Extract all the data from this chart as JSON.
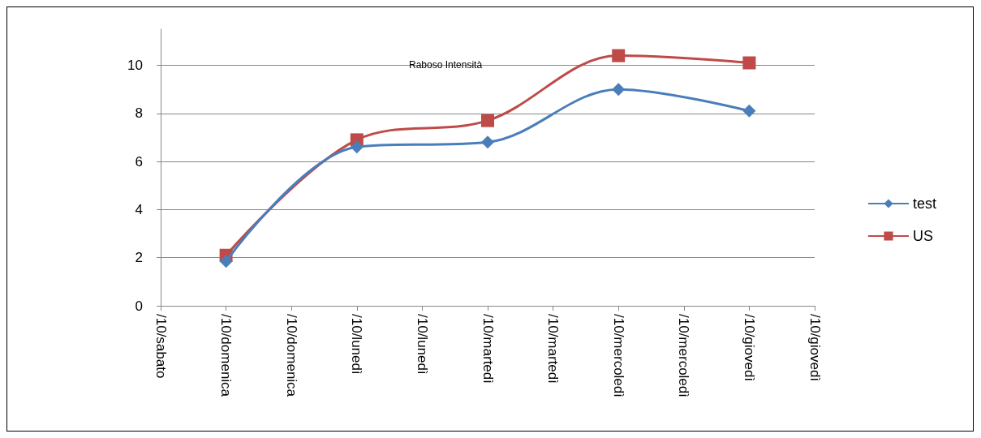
{
  "chart_data": {
    "type": "line",
    "title": "Raboso Intensità",
    "categories": [
      "/10/sabato",
      "/10/domenica",
      "/10/domenica",
      "/10/lunedì",
      "/10/lunedì",
      "/10/martedì",
      "/10/martedì",
      "/10/mercoledì",
      "/10/mercoledì",
      "/10/giovedì",
      "/10/giovedì"
    ],
    "series": [
      {
        "name": "test",
        "color": "#4a7ebb",
        "marker": "diamond",
        "values": [
          null,
          1.85,
          null,
          6.6,
          null,
          6.8,
          null,
          9.0,
          null,
          8.1,
          null
        ]
      },
      {
        "name": "US",
        "color": "#be4b48",
        "marker": "square",
        "values": [
          null,
          2.1,
          null,
          6.9,
          null,
          7.7,
          null,
          10.4,
          null,
          10.1,
          null
        ]
      }
    ],
    "ylim": [
      0,
      11.5
    ],
    "yticks": [
      0,
      2,
      4,
      6,
      8,
      10
    ],
    "grid": "y",
    "legend": "right"
  }
}
